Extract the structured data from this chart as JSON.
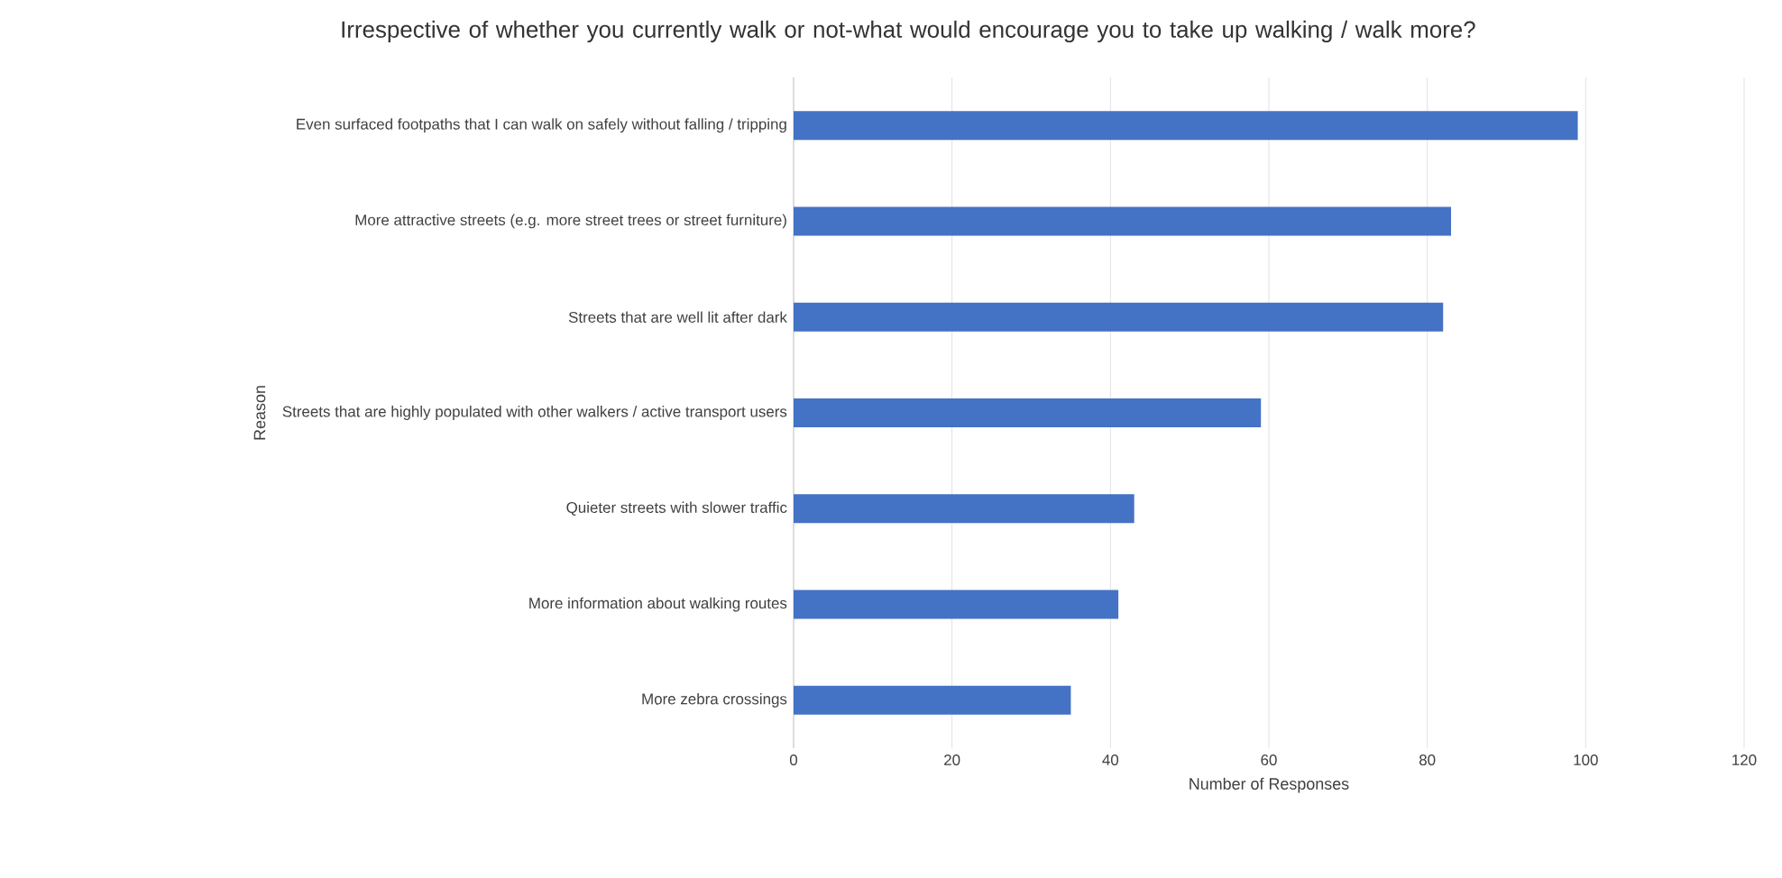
{
  "chart_data": {
    "type": "bar",
    "orientation": "horizontal",
    "title": "Irrespective of whether you currently walk or not-what would encourage you to take up walking / walk more?",
    "xlabel": "Number of Responses",
    "ylabel": "Reason",
    "categories": [
      "Even surfaced footpaths that I can walk on safely without falling / tripping",
      "More attractive streets (e.g. more street trees or street furniture)",
      "Streets that are well lit after dark",
      "Streets that are highly populated with other walkers / active transport users",
      "Quieter streets with slower traffic",
      "More information about walking routes",
      "More zebra crossings"
    ],
    "values": [
      99,
      83,
      82,
      59,
      43,
      41,
      35
    ],
    "color": "#4472c4",
    "xlim": [
      0,
      120
    ],
    "xticks": [
      0,
      20,
      40,
      60,
      80,
      100,
      120
    ],
    "grid": "x"
  }
}
